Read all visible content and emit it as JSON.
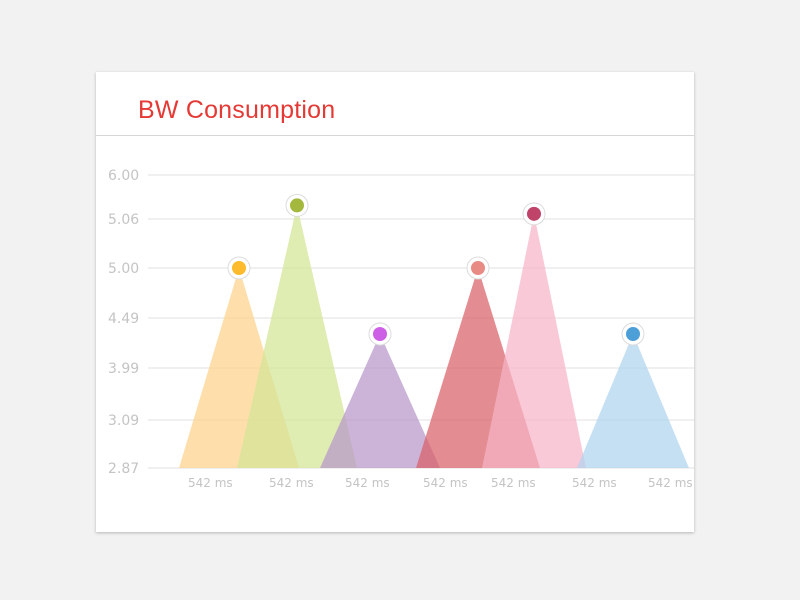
{
  "card": {
    "title": "BW Consumption"
  },
  "chart_data": {
    "type": "area",
    "title": "BW Consumption",
    "xlabel": "",
    "ylabel": "",
    "y_tick_labels": [
      "2.87",
      "3.09",
      "3.99",
      "4.49",
      "5.00",
      "5.06",
      "6.00"
    ],
    "x_tick_labels": [
      "542 ms",
      "542 ms",
      "542 ms",
      "542 ms",
      "542 ms",
      "542 ms",
      "542 ms"
    ],
    "grid": true,
    "legend": "none",
    "series": [
      {
        "value": 5.0,
        "color": "#fdbb2d",
        "fill": "#fdd28a"
      },
      {
        "value": 5.35,
        "color": "#a4b83e",
        "fill": "#d3e494"
      },
      {
        "value": 4.33,
        "color": "#cd5fe6",
        "fill": "#b997c9"
      },
      {
        "value": 5.0,
        "color": "#e88b85",
        "fill": "#d86066"
      },
      {
        "value": 5.17,
        "color": "#c0436a",
        "fill": "#f6b4c8"
      },
      {
        "value": 4.33,
        "color": "#4d9fd8",
        "fill": "#b0d4ee"
      }
    ]
  }
}
